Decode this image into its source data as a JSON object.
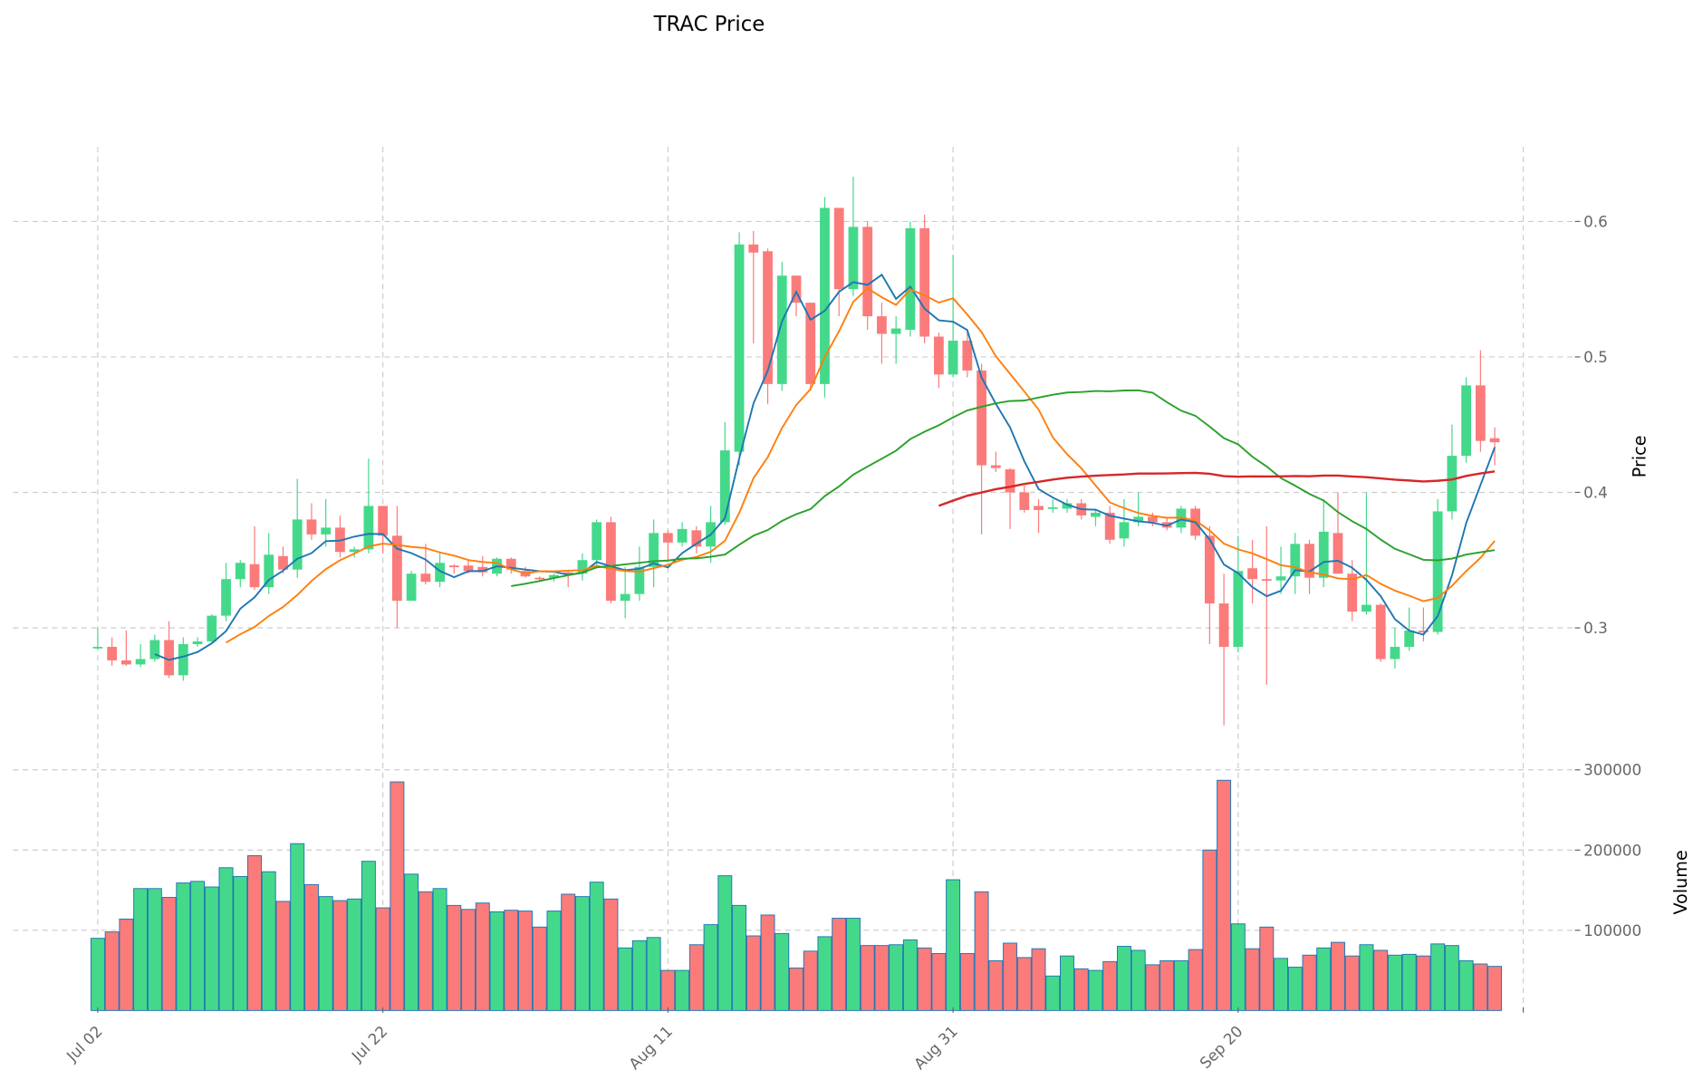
{
  "chart_data": {
    "type": "candlestick",
    "title": "TRAC Price",
    "ylabel_price": "Price",
    "ylabel_volume": "Volume",
    "price_ylim": [
      0.21,
      0.655
    ],
    "volume_ylim": [
      0,
      325000
    ],
    "price_ticks": [
      "0.3",
      "0.4",
      "0.5",
      "0.6"
    ],
    "price_tick_values": [
      0.3,
      0.4,
      0.5,
      0.6
    ],
    "volume_ticks": [
      "100000",
      "200000",
      "300000"
    ],
    "volume_tick_values": [
      100000,
      200000,
      300000
    ],
    "x_ticks": [
      "Jul 02",
      "Jul 22",
      "Aug 11",
      "Aug 31",
      "Sep 20"
    ],
    "x_tick_days": [
      0,
      20,
      40,
      60,
      80
    ],
    "x_extra_tick_day": 100,
    "colors": {
      "up": "#44d98a",
      "down": "#fb7b7b",
      "edge": "#1f77b4",
      "ma": [
        "#1f77b4",
        "#ff7f0e",
        "#2ca02c",
        "#d62728"
      ]
    },
    "ma_windows": [
      5,
      10,
      30,
      60
    ],
    "ohlcv": [
      [
        0.285,
        0.3,
        0.284,
        0.286,
        90000
      ],
      [
        0.286,
        0.293,
        0.272,
        0.276,
        98000
      ],
      [
        0.276,
        0.298,
        0.272,
        0.273,
        114000
      ],
      [
        0.273,
        0.288,
        0.271,
        0.277,
        152000
      ],
      [
        0.277,
        0.295,
        0.275,
        0.291,
        152000
      ],
      [
        0.291,
        0.305,
        0.263,
        0.265,
        141000
      ],
      [
        0.265,
        0.293,
        0.261,
        0.288,
        159000
      ],
      [
        0.288,
        0.293,
        0.286,
        0.29,
        161000
      ],
      [
        0.29,
        0.31,
        0.288,
        0.309,
        154000
      ],
      [
        0.309,
        0.348,
        0.305,
        0.336,
        178000
      ],
      [
        0.336,
        0.35,
        0.33,
        0.348,
        167000
      ],
      [
        0.347,
        0.375,
        0.328,
        0.33,
        193000
      ],
      [
        0.33,
        0.37,
        0.325,
        0.354,
        173000
      ],
      [
        0.353,
        0.36,
        0.34,
        0.343,
        136000
      ],
      [
        0.343,
        0.41,
        0.337,
        0.38,
        208000
      ],
      [
        0.38,
        0.392,
        0.365,
        0.369,
        157000
      ],
      [
        0.369,
        0.395,
        0.36,
        0.374,
        142000
      ],
      [
        0.374,
        0.383,
        0.352,
        0.356,
        137000
      ],
      [
        0.356,
        0.36,
        0.352,
        0.358,
        139000
      ],
      [
        0.358,
        0.425,
        0.355,
        0.39,
        186000
      ],
      [
        0.39,
        0.39,
        0.355,
        0.368,
        128000
      ],
      [
        0.368,
        0.39,
        0.3,
        0.32,
        285000
      ],
      [
        0.32,
        0.342,
        0.32,
        0.34,
        170000
      ],
      [
        0.34,
        0.362,
        0.332,
        0.334,
        148000
      ],
      [
        0.334,
        0.355,
        0.33,
        0.348,
        152000
      ],
      [
        0.346,
        0.347,
        0.34,
        0.345,
        131000
      ],
      [
        0.346,
        0.35,
        0.34,
        0.342,
        126000
      ],
      [
        0.345,
        0.353,
        0.338,
        0.341,
        134000
      ],
      [
        0.34,
        0.352,
        0.338,
        0.351,
        123000
      ],
      [
        0.351,
        0.352,
        0.34,
        0.343,
        125000
      ],
      [
        0.342,
        0.345,
        0.337,
        0.338,
        124000
      ],
      [
        0.337,
        0.338,
        0.334,
        0.336,
        104000
      ],
      [
        0.337,
        0.34,
        0.334,
        0.339,
        124000
      ],
      [
        0.341,
        0.342,
        0.33,
        0.34,
        145000
      ],
      [
        0.34,
        0.355,
        0.335,
        0.35,
        142000
      ],
      [
        0.35,
        0.38,
        0.345,
        0.378,
        160000
      ],
      [
        0.378,
        0.382,
        0.318,
        0.32,
        139000
      ],
      [
        0.32,
        0.345,
        0.307,
        0.325,
        78000
      ],
      [
        0.325,
        0.36,
        0.32,
        0.345,
        87000
      ],
      [
        0.345,
        0.38,
        0.33,
        0.37,
        91000
      ],
      [
        0.37,
        0.372,
        0.35,
        0.363,
        50000
      ],
      [
        0.363,
        0.378,
        0.36,
        0.373,
        50000
      ],
      [
        0.372,
        0.375,
        0.355,
        0.36,
        82000
      ],
      [
        0.36,
        0.39,
        0.348,
        0.378,
        107000
      ],
      [
        0.378,
        0.452,
        0.376,
        0.431,
        168000
      ],
      [
        0.43,
        0.592,
        0.42,
        0.583,
        131000
      ],
      [
        0.583,
        0.593,
        0.51,
        0.577,
        93000
      ],
      [
        0.578,
        0.58,
        0.465,
        0.48,
        119000
      ],
      [
        0.48,
        0.57,
        0.475,
        0.56,
        96000
      ],
      [
        0.56,
        0.56,
        0.53,
        0.54,
        53000
      ],
      [
        0.54,
        0.54,
        0.475,
        0.48,
        74000
      ],
      [
        0.48,
        0.618,
        0.47,
        0.61,
        92000
      ],
      [
        0.61,
        0.61,
        0.53,
        0.55,
        115000
      ],
      [
        0.55,
        0.633,
        0.545,
        0.596,
        115000
      ],
      [
        0.596,
        0.6,
        0.52,
        0.53,
        81000
      ],
      [
        0.53,
        0.54,
        0.495,
        0.517,
        81000
      ],
      [
        0.517,
        0.53,
        0.495,
        0.521,
        82000
      ],
      [
        0.52,
        0.6,
        0.515,
        0.595,
        88000
      ],
      [
        0.595,
        0.605,
        0.51,
        0.515,
        78000
      ],
      [
        0.515,
        0.518,
        0.477,
        0.487,
        71000
      ],
      [
        0.487,
        0.575,
        0.485,
        0.512,
        163000
      ],
      [
        0.512,
        0.52,
        0.485,
        0.49,
        71000
      ],
      [
        0.49,
        0.495,
        0.369,
        0.42,
        148000
      ],
      [
        0.42,
        0.43,
        0.415,
        0.418,
        62000
      ],
      [
        0.417,
        0.418,
        0.373,
        0.4,
        84000
      ],
      [
        0.4,
        0.405,
        0.385,
        0.387,
        66000
      ],
      [
        0.39,
        0.395,
        0.37,
        0.387,
        77000
      ],
      [
        0.388,
        0.395,
        0.385,
        0.389,
        43000
      ],
      [
        0.388,
        0.395,
        0.385,
        0.392,
        68000
      ],
      [
        0.392,
        0.395,
        0.38,
        0.383,
        52000
      ],
      [
        0.382,
        0.388,
        0.375,
        0.385,
        50000
      ],
      [
        0.385,
        0.39,
        0.362,
        0.365,
        61000
      ],
      [
        0.366,
        0.395,
        0.36,
        0.378,
        80000
      ],
      [
        0.378,
        0.4,
        0.375,
        0.382,
        75000
      ],
      [
        0.382,
        0.385,
        0.375,
        0.378,
        57000
      ],
      [
        0.378,
        0.382,
        0.372,
        0.374,
        62000
      ],
      [
        0.374,
        0.39,
        0.37,
        0.388,
        62000
      ],
      [
        0.388,
        0.39,
        0.365,
        0.368,
        76000
      ],
      [
        0.368,
        0.375,
        0.288,
        0.318,
        200000
      ],
      [
        0.318,
        0.34,
        0.228,
        0.286,
        287000
      ],
      [
        0.286,
        0.368,
        0.282,
        0.342,
        108000
      ],
      [
        0.344,
        0.365,
        0.318,
        0.336,
        77000
      ],
      [
        0.336,
        0.375,
        0.258,
        0.335,
        104000
      ],
      [
        0.335,
        0.36,
        0.325,
        0.338,
        65000
      ],
      [
        0.338,
        0.37,
        0.325,
        0.362,
        54000
      ],
      [
        0.362,
        0.365,
        0.325,
        0.337,
        69000
      ],
      [
        0.337,
        0.395,
        0.33,
        0.371,
        78000
      ],
      [
        0.37,
        0.4,
        0.34,
        0.34,
        85000
      ],
      [
        0.34,
        0.35,
        0.305,
        0.312,
        68000
      ],
      [
        0.312,
        0.4,
        0.31,
        0.317,
        82000
      ],
      [
        0.317,
        0.318,
        0.275,
        0.277,
        75000
      ],
      [
        0.277,
        0.3,
        0.27,
        0.286,
        69000
      ],
      [
        0.286,
        0.315,
        0.283,
        0.298,
        70000
      ],
      [
        0.298,
        0.315,
        0.29,
        0.297,
        68000
      ],
      [
        0.297,
        0.395,
        0.295,
        0.386,
        83000
      ],
      [
        0.386,
        0.45,
        0.38,
        0.427,
        81000
      ],
      [
        0.427,
        0.485,
        0.422,
        0.479,
        62000
      ],
      [
        0.479,
        0.505,
        0.43,
        0.438,
        58000
      ],
      [
        0.44,
        0.448,
        0.42,
        0.437,
        55000
      ]
    ]
  }
}
